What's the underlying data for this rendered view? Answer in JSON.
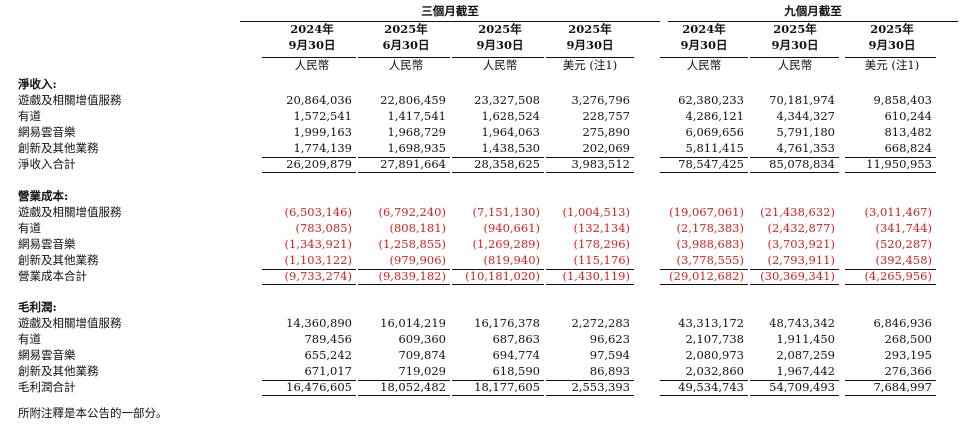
{
  "header": {
    "group_three": "三個月截至",
    "group_nine": "九個月截至",
    "columns": [
      {
        "year": "2024年",
        "date": "9月30日",
        "unit": "人民幣"
      },
      {
        "year": "2025年",
        "date": "6月30日",
        "unit": "人民幣"
      },
      {
        "year": "2025年",
        "date": "9月30日",
        "unit": "人民幣"
      },
      {
        "year": "2025年",
        "date": "9月30日",
        "unit": "美元 (注1)"
      },
      {
        "year": "2024年",
        "date": "9月30日",
        "unit": "人民幣"
      },
      {
        "year": "2025年",
        "date": "9月30日",
        "unit": "人民幣"
      },
      {
        "year": "2025年",
        "date": "9月30日",
        "unit": "美元 (注1)"
      }
    ]
  },
  "sections": [
    {
      "title": "淨收入:",
      "rows": [
        {
          "label": "遊戲及相關增值服務",
          "values": [
            "20,864,036",
            "22,806,459",
            "23,327,508",
            "3,276,796",
            "62,380,233",
            "70,181,974",
            "9,858,403"
          ]
        },
        {
          "label": "有道",
          "values": [
            "1,572,541",
            "1,417,541",
            "1,628,524",
            "228,757",
            "4,286,121",
            "4,344,327",
            "610,244"
          ]
        },
        {
          "label": "網易雲音樂",
          "values": [
            "1,999,163",
            "1,968,729",
            "1,964,063",
            "275,890",
            "6,069,656",
            "5,791,180",
            "813,482"
          ]
        },
        {
          "label": "創新及其他業務",
          "values": [
            "1,774,139",
            "1,698,935",
            "1,438,530",
            "202,069",
            "5,811,415",
            "4,761,353",
            "668,824"
          ]
        }
      ],
      "total": {
        "label": "淨收入合計",
        "values": [
          "26,209,879",
          "27,891,664",
          "28,358,625",
          "3,983,512",
          "78,547,425",
          "85,078,834",
          "11,950,953"
        ]
      },
      "negative": false
    },
    {
      "title": "營業成本:",
      "rows": [
        {
          "label": "遊戲及相關增值服務",
          "values": [
            "(6,503,146)",
            "(6,792,240)",
            "(7,151,130)",
            "(1,004,513)",
            "(19,067,061)",
            "(21,438,632)",
            "(3,011,467)"
          ]
        },
        {
          "label": "有道",
          "values": [
            "(783,085)",
            "(808,181)",
            "(940,661)",
            "(132,134)",
            "(2,178,383)",
            "(2,432,877)",
            "(341,744)"
          ]
        },
        {
          "label": "網易雲音樂",
          "values": [
            "(1,343,921)",
            "(1,258,855)",
            "(1,269,289)",
            "(178,296)",
            "(3,988,683)",
            "(3,703,921)",
            "(520,287)"
          ]
        },
        {
          "label": "創新及其他業務",
          "values": [
            "(1,103,122)",
            "(979,906)",
            "(819,940)",
            "(115,176)",
            "(3,778,555)",
            "(2,793,911)",
            "(392,458)"
          ]
        }
      ],
      "total": {
        "label": "營業成本合計",
        "values": [
          "(9,733,274)",
          "(9,839,182)",
          "(10,181,020)",
          "(1,430,119)",
          "(29,012,682)",
          "(30,369,341)",
          "(4,265,956)"
        ]
      },
      "negative": true
    },
    {
      "title": "毛利潤:",
      "rows": [
        {
          "label": "遊戲及相關增值服務",
          "values": [
            "14,360,890",
            "16,014,219",
            "16,176,378",
            "2,272,283",
            "43,313,172",
            "48,743,342",
            "6,846,936"
          ]
        },
        {
          "label": "有道",
          "values": [
            "789,456",
            "609,360",
            "687,863",
            "96,623",
            "2,107,738",
            "1,911,450",
            "268,500"
          ]
        },
        {
          "label": "網易雲音樂",
          "values": [
            "655,242",
            "709,874",
            "694,774",
            "97,594",
            "2,080,973",
            "2,087,259",
            "293,195"
          ]
        },
        {
          "label": "創新及其他業務",
          "values": [
            "671,017",
            "719,029",
            "618,590",
            "86,893",
            "2,032,860",
            "1,967,442",
            "276,366"
          ]
        }
      ],
      "total": {
        "label": "毛利潤合計",
        "values": [
          "16,476,605",
          "18,052,482",
          "18,177,605",
          "2,553,393",
          "49,534,743",
          "54,709,493",
          "7,684,997"
        ]
      },
      "negative": false
    }
  ],
  "footnote": "所附注釋是本公告的一部分。",
  "colors": {
    "text": "#111111",
    "negative": "#d42020"
  }
}
